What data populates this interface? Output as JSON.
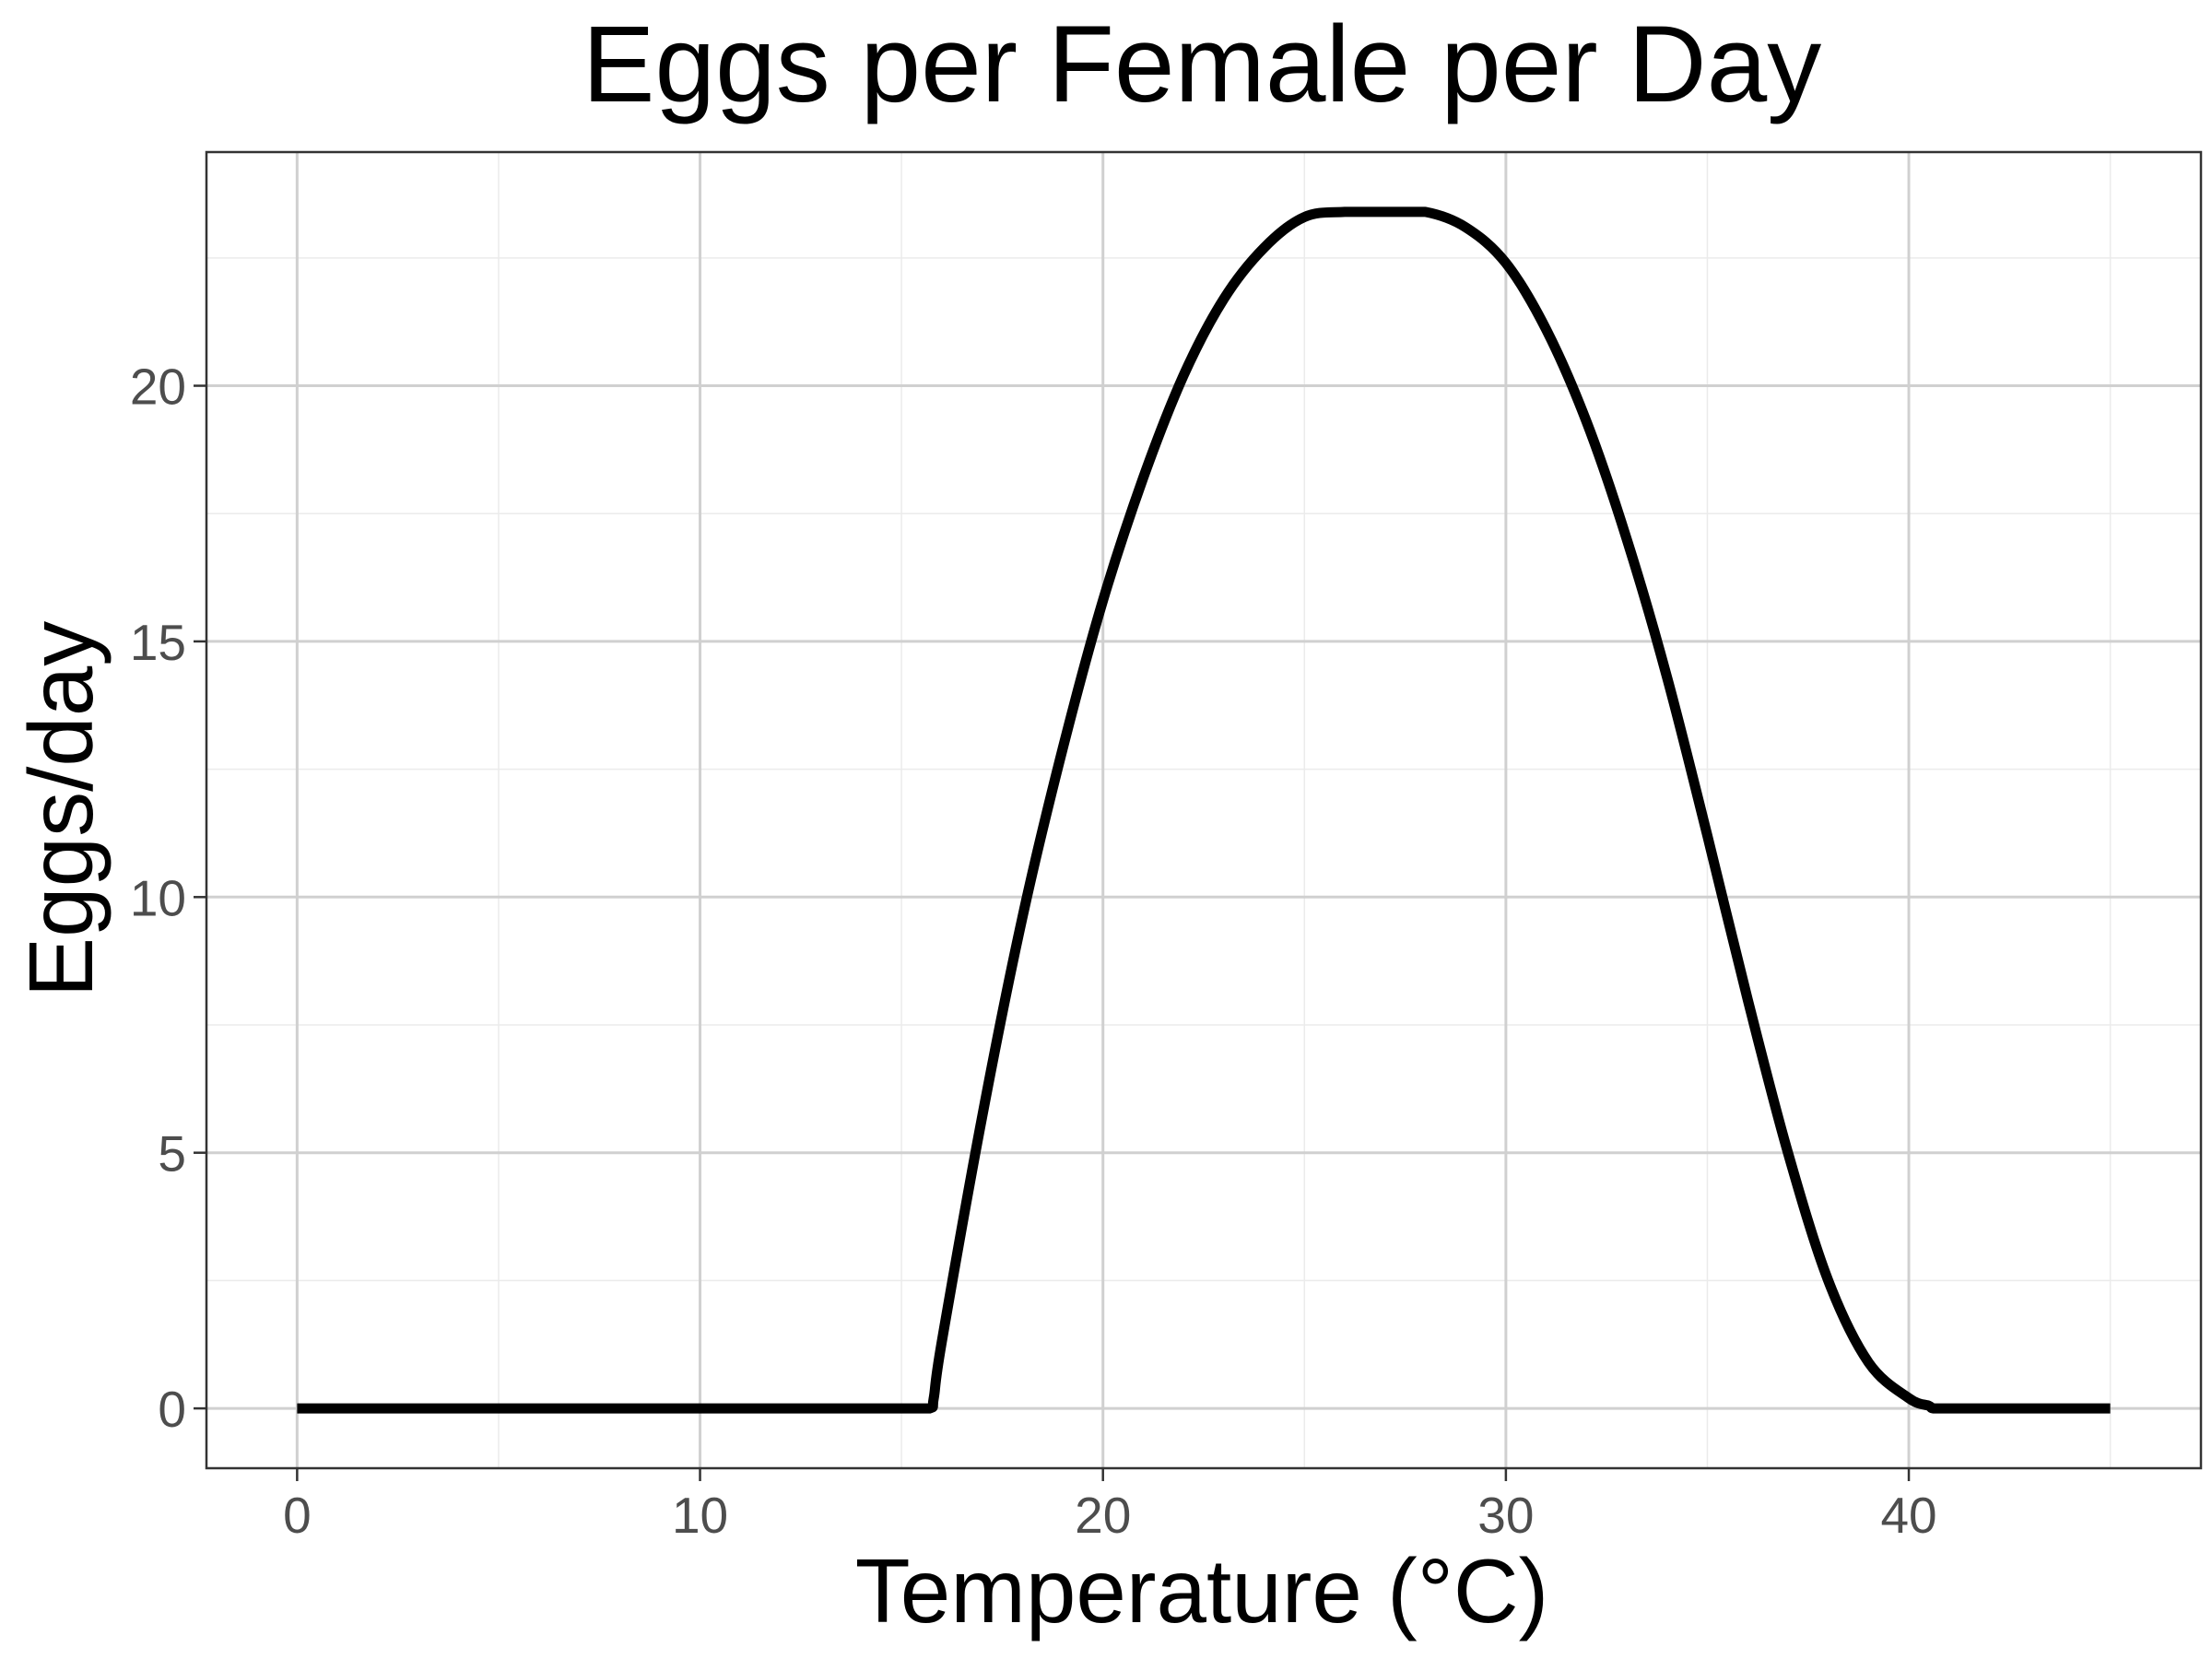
{
  "chart_data": {
    "type": "line",
    "title": "Eggs per Female per Day",
    "xlabel": "Temperature (°C)",
    "ylabel": "Eggs/day",
    "xlim": [
      -2.25,
      47.25
    ],
    "ylim": [
      -1.17,
      24.57
    ],
    "x_ticks": [
      0,
      10,
      20,
      30,
      40
    ],
    "x_tick_labels": [
      "0",
      "10",
      "20",
      "30",
      "40"
    ],
    "y_ticks": [
      0,
      5,
      10,
      15,
      20
    ],
    "y_tick_labels": [
      "0",
      "5",
      "10",
      "15",
      "20"
    ],
    "grid": true,
    "legend": "none",
    "line_color": "#000000",
    "series": [
      {
        "x": [
          0,
          5,
          10,
          15,
          15.7,
          15.8,
          16,
          17,
          18,
          19,
          20,
          21,
          22,
          23,
          24,
          25,
          26,
          27,
          28,
          29,
          30,
          31,
          32,
          33,
          34,
          35,
          36,
          37,
          38,
          39,
          40,
          40.5,
          40.6,
          41,
          42,
          43,
          44,
          45
        ],
        "y": [
          0,
          0,
          0,
          0,
          0,
          0.2,
          1.3,
          5.7,
          9.6,
          12.9,
          15.8,
          18.2,
          20.2,
          21.7,
          22.7,
          23.3,
          23.4,
          23.4,
          23.4,
          23.1,
          22.4,
          21.1,
          19.3,
          17.0,
          14.3,
          11.2,
          8.0,
          5.0,
          2.5,
          0.9,
          0.2,
          0.05,
          0,
          0,
          0,
          0,
          0,
          0
        ]
      }
    ]
  }
}
